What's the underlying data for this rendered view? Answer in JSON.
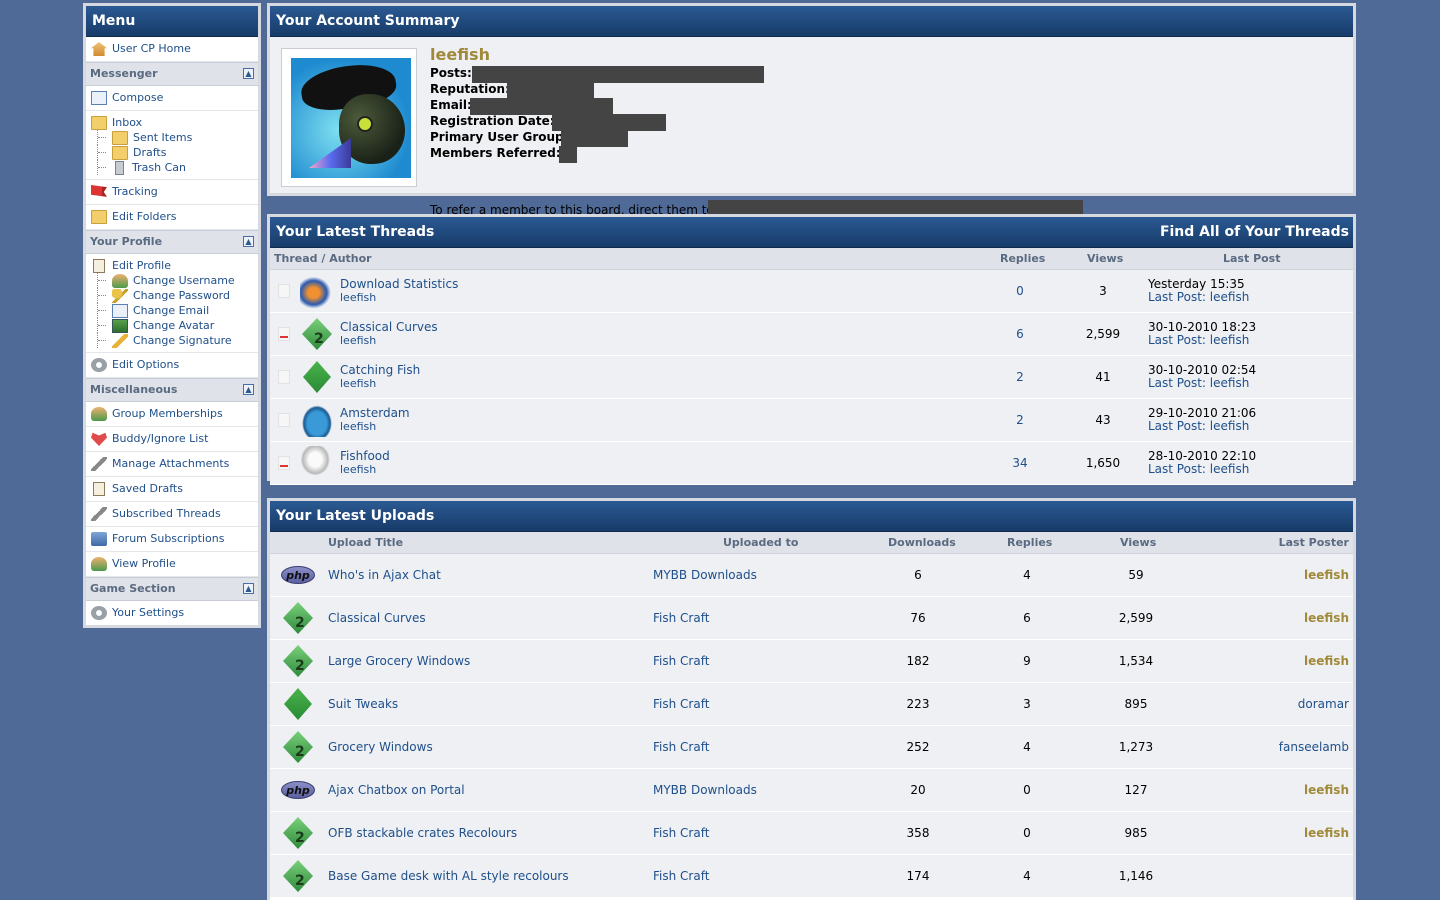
{
  "sidebar": {
    "title": "Menu",
    "home": "User CP Home",
    "messenger": {
      "title": "Messenger",
      "compose": "Compose",
      "inbox": "Inbox",
      "sent": "Sent Items",
      "drafts": "Drafts",
      "trash": "Trash Can",
      "tracking": "Tracking",
      "edit_folders": "Edit Folders"
    },
    "profile": {
      "title": "Your Profile",
      "edit_profile": "Edit Profile",
      "change_username": "Change Username",
      "change_password": "Change Password",
      "change_email": "Change Email",
      "change_avatar": "Change Avatar",
      "change_signature": "Change Signature",
      "edit_options": "Edit Options"
    },
    "misc": {
      "title": "Miscellaneous",
      "items": [
        "Group Memberships",
        "Buddy/Ignore List",
        "Manage Attachments",
        "Saved Drafts",
        "Subscribed Threads",
        "Forum Subscriptions",
        "View Profile"
      ]
    },
    "game": {
      "title": "Game Section",
      "settings": "Your Settings"
    }
  },
  "account": {
    "title": "Your Account Summary",
    "username": "leefish",
    "posts_label": "Posts:",
    "reputation_label": "Reputation:",
    "email_label": "Email:",
    "regdate_label": "Registration Date:",
    "group_label": "Primary User Group:",
    "referred_label": "Members Referred:",
    "refer_text": "To refer a member to this board, direct them to"
  },
  "threads": {
    "title": "Your Latest Threads",
    "find_all": "Find All of Your Threads",
    "col_thread": "Thread / Author",
    "col_replies": "Replies",
    "col_views": "Views",
    "col_lastpost": "Last Post",
    "last_post_label": "Last Post:",
    "rows": [
      {
        "title": "Download Statistics",
        "author": "leefish",
        "replies": "0",
        "views": "3",
        "date": "Yesterday 15:35",
        "last": "leefish",
        "icon": "fish-icon",
        "hot": false
      },
      {
        "title": "Classical Curves",
        "author": "leefish",
        "replies": "6",
        "views": "2,599",
        "date": "30-10-2010 18:23",
        "last": "leefish",
        "icon": "sims2-icon",
        "hot": true
      },
      {
        "title": "Catching Fish",
        "author": "leefish",
        "replies": "2",
        "views": "41",
        "date": "30-10-2010 02:54",
        "last": "leefish",
        "icon": "sims3-icon",
        "hot": false
      },
      {
        "title": "Amsterdam",
        "author": "leefish",
        "replies": "2",
        "views": "43",
        "date": "29-10-2010 21:06",
        "last": "leefish",
        "icon": "teapot-icon",
        "hot": false
      },
      {
        "title": "Fishfood",
        "author": "leefish",
        "replies": "34",
        "views": "1,650",
        "date": "28-10-2010 22:10",
        "last": "leefish",
        "icon": "bubble-icon",
        "hot": true
      }
    ]
  },
  "uploads": {
    "title": "Your Latest Uploads",
    "col_title": "Upload Title",
    "col_uploaded": "Uploaded to",
    "col_downloads": "Downloads",
    "col_replies": "Replies",
    "col_views": "Views",
    "col_poster": "Last Poster",
    "rows": [
      {
        "title": "Who's in Ajax Chat",
        "to": "MYBB Downloads",
        "downloads": "6",
        "replies": "4",
        "views": "59",
        "poster": "leefish",
        "gold": true,
        "icon": "php-icon",
        "php_text": "php"
      },
      {
        "title": "Classical Curves",
        "to": "Fish Craft",
        "downloads": "76",
        "replies": "6",
        "views": "2,599",
        "poster": "leefish",
        "gold": true,
        "icon": "sims2-icon"
      },
      {
        "title": "Large Grocery Windows",
        "to": "Fish Craft",
        "downloads": "182",
        "replies": "9",
        "views": "1,534",
        "poster": "leefish",
        "gold": true,
        "icon": "sims2-icon"
      },
      {
        "title": "Suit Tweaks",
        "to": "Fish Craft",
        "downloads": "223",
        "replies": "3",
        "views": "895",
        "poster": "doramar",
        "gold": false,
        "icon": "sims3-icon"
      },
      {
        "title": "Grocery Windows",
        "to": "Fish Craft",
        "downloads": "252",
        "replies": "4",
        "views": "1,273",
        "poster": "fanseelamb",
        "gold": false,
        "icon": "sims2-icon"
      },
      {
        "title": "Ajax Chatbox on Portal",
        "to": "MYBB Downloads",
        "downloads": "20",
        "replies": "0",
        "views": "127",
        "poster": "leefish",
        "gold": true,
        "icon": "php-icon",
        "php_text": "php"
      },
      {
        "title": "OFB stackable crates Recolours",
        "to": "Fish Craft",
        "downloads": "358",
        "replies": "0",
        "views": "985",
        "poster": "leefish",
        "gold": true,
        "icon": "sims2-icon"
      },
      {
        "title": "Base Game desk with AL style recolours",
        "to": "Fish Craft",
        "downloads": "174",
        "replies": "4",
        "views": "1,146",
        "poster": "",
        "gold": false,
        "icon": "sims2-icon"
      }
    ]
  }
}
